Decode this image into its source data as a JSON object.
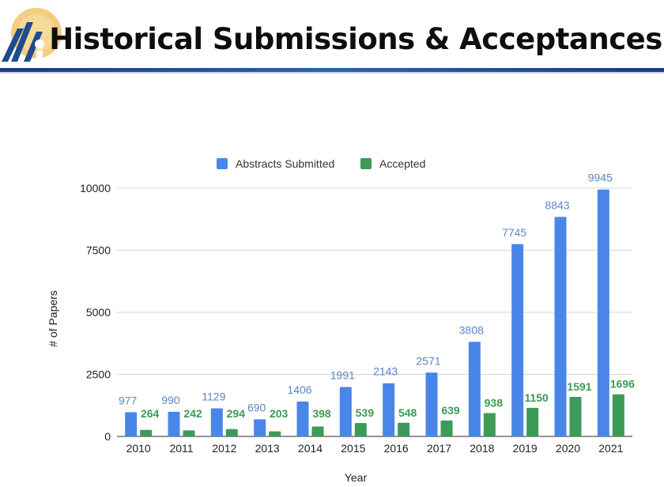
{
  "header": {
    "title": "Historical Submissions & Acceptances"
  },
  "colors": {
    "submitted": "#4a86e8",
    "accepted": "#3d9a58",
    "submitted_label": "#5a86c5",
    "accepted_label": "#3c9a55",
    "rule": "#1f4b8f"
  },
  "chart_data": {
    "type": "bar",
    "categories": [
      "2010",
      "2011",
      "2012",
      "2013",
      "2014",
      "2015",
      "2016",
      "2017",
      "2018",
      "2019",
      "2020",
      "2021"
    ],
    "series": [
      {
        "name": "Abstracts Submitted",
        "values": [
          977,
          990,
          1129,
          690,
          1406,
          1991,
          2143,
          2571,
          3808,
          7745,
          8843,
          9945
        ]
      },
      {
        "name": "Accepted",
        "values": [
          264,
          242,
          294,
          203,
          398,
          539,
          548,
          639,
          938,
          1150,
          1591,
          1696
        ]
      }
    ],
    "xlabel": "Year",
    "ylabel": "# of Papers",
    "ylim": [
      0,
      10000
    ],
    "yticks": [
      "0",
      "2500",
      "5000",
      "7500",
      "10000"
    ],
    "grid": true,
    "legend": "top"
  }
}
